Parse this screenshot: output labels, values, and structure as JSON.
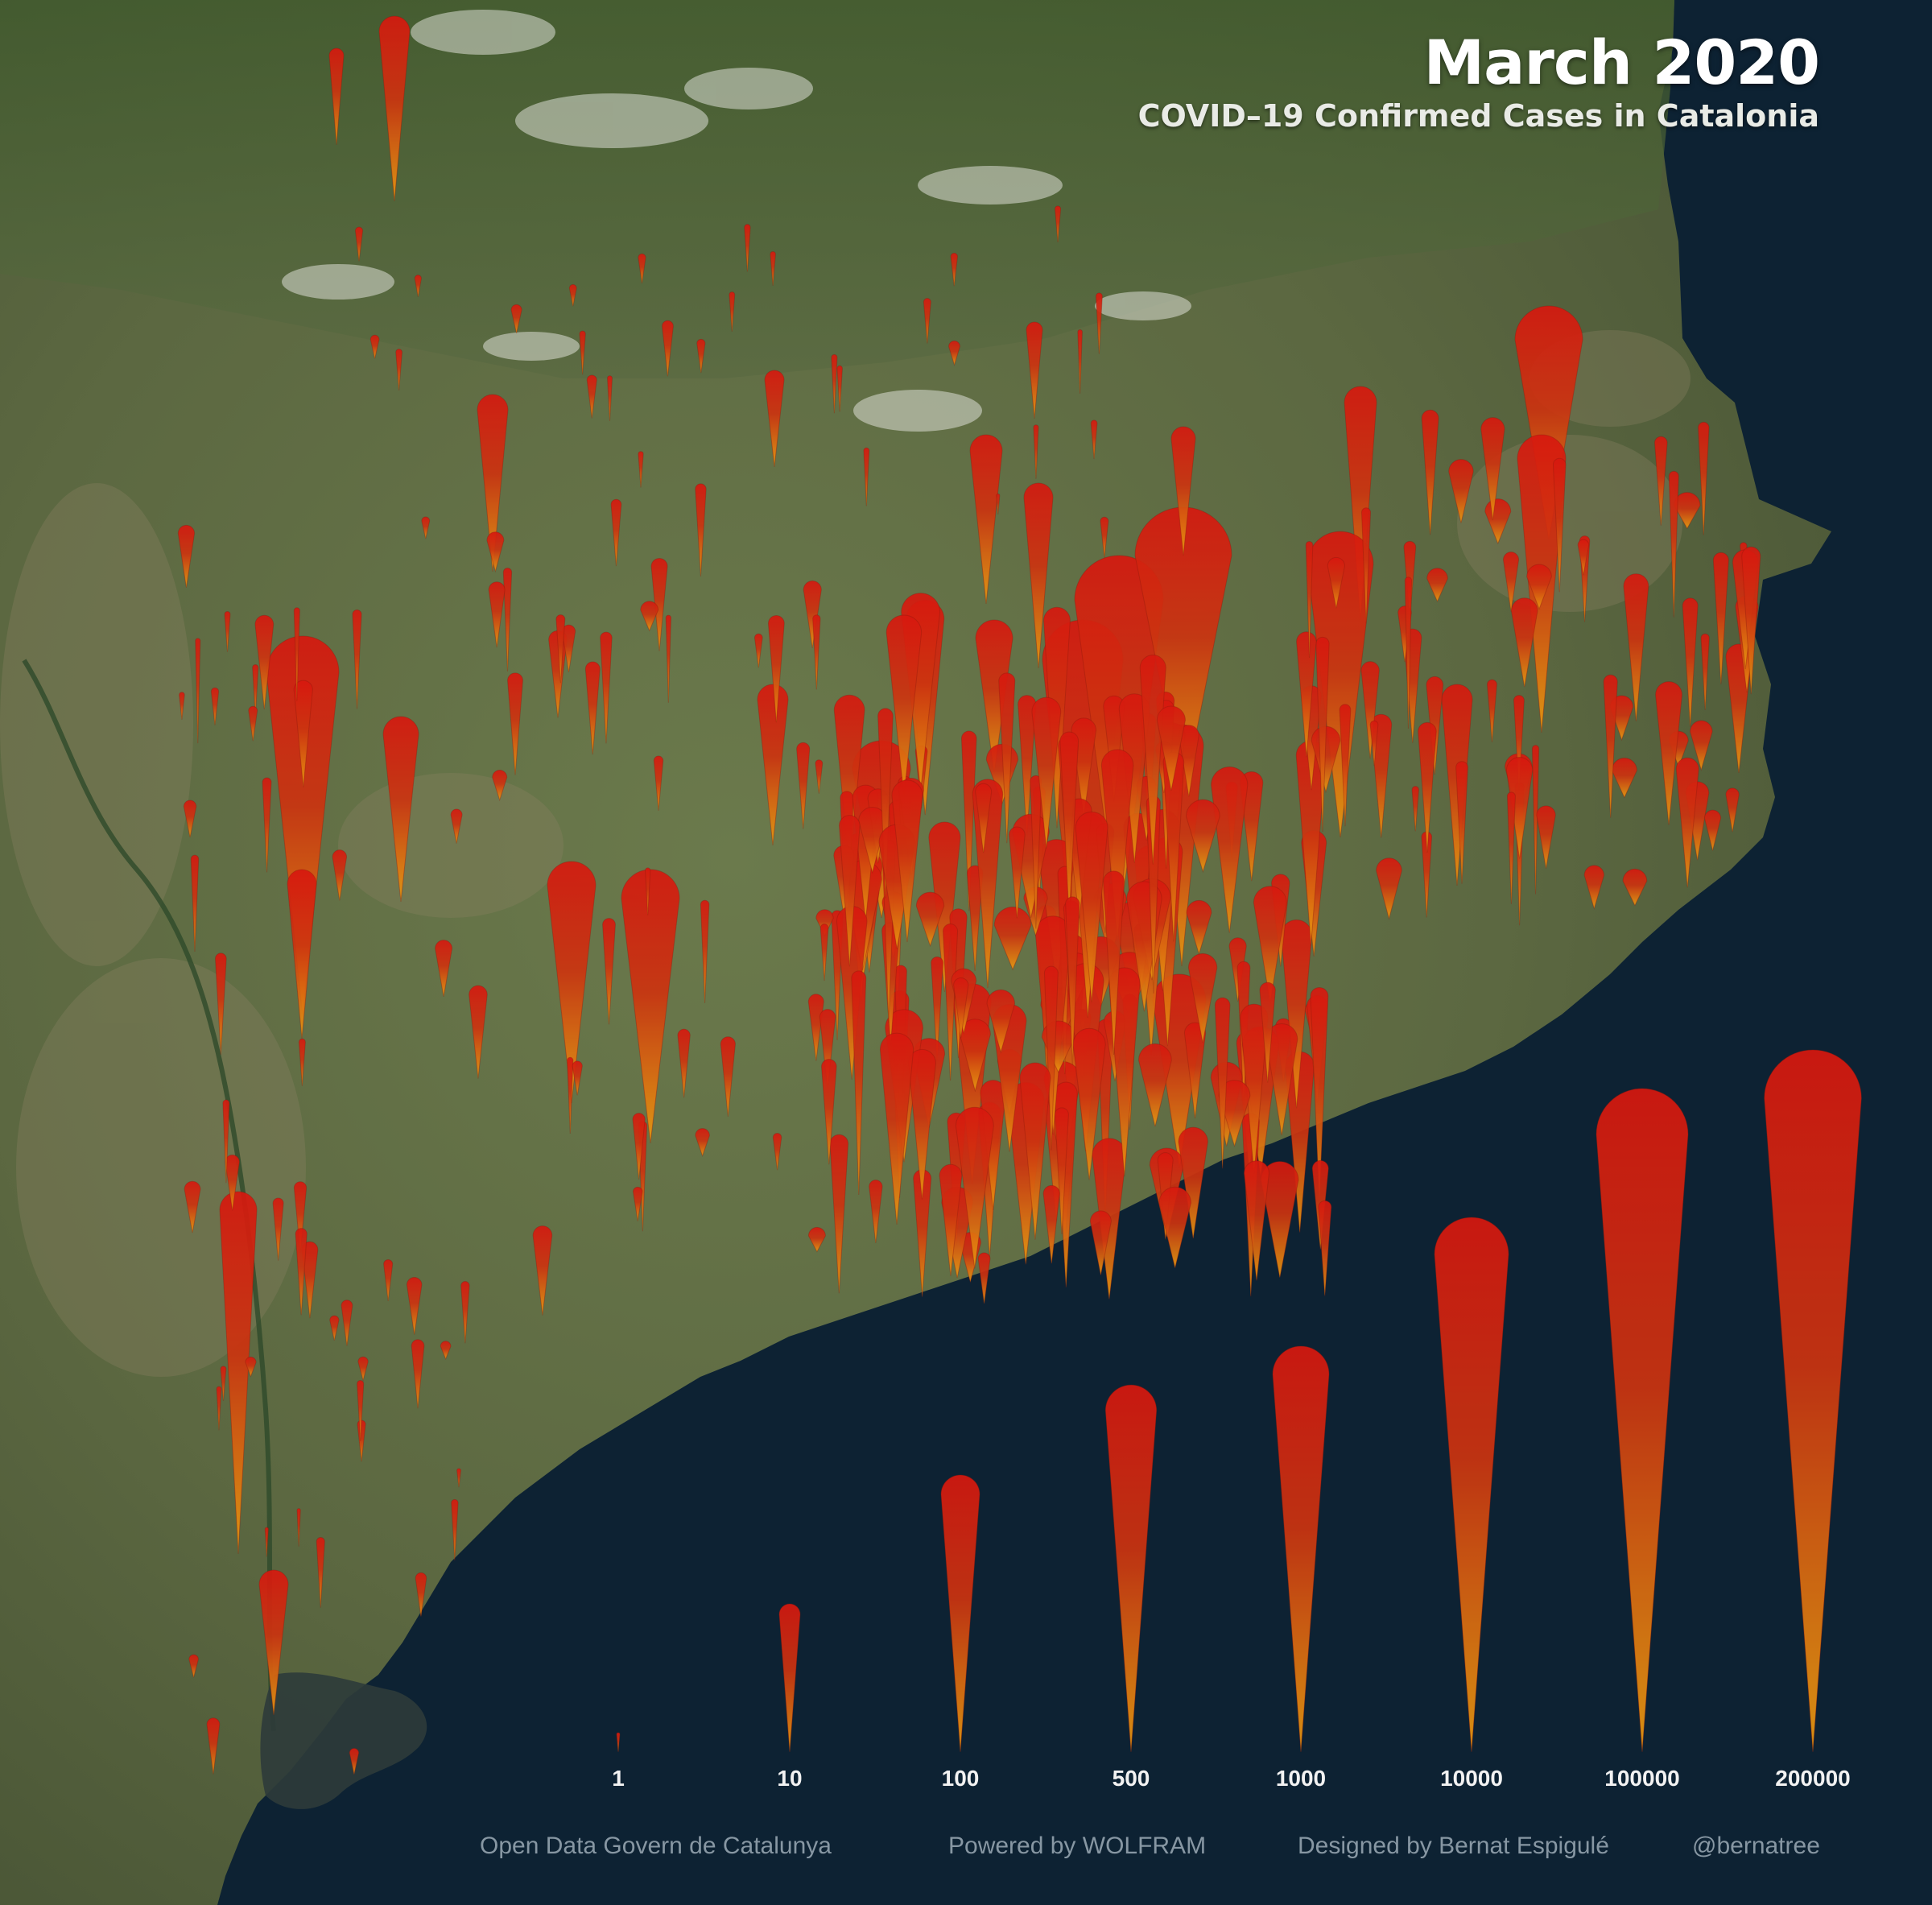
{
  "title": "March 2020",
  "subtitle": "COVID–19 Confirmed Cases in Catalonia",
  "legend": {
    "items": [
      {
        "label": "1",
        "value": 1
      },
      {
        "label": "10",
        "value": 10
      },
      {
        "label": "100",
        "value": 100
      },
      {
        "label": "500",
        "value": 500
      },
      {
        "label": "1000",
        "value": 1000
      },
      {
        "label": "10000",
        "value": 10000
      },
      {
        "label": "100000",
        "value": 100000
      },
      {
        "label": "200000",
        "value": 200000
      }
    ]
  },
  "credits": {
    "source": "Open Data Govern de Catalunya",
    "powered": "Powered by WOLFRAM",
    "designer": "Designed by Bernat Espigulé",
    "handle": "@bernatree"
  },
  "colors": {
    "sea": "#0d2233",
    "land": "#5f6c45",
    "marker_top": "#d8180f",
    "marker_bottom": "#e89a10",
    "text": "#ffffff",
    "credits": "#8797a3"
  }
}
